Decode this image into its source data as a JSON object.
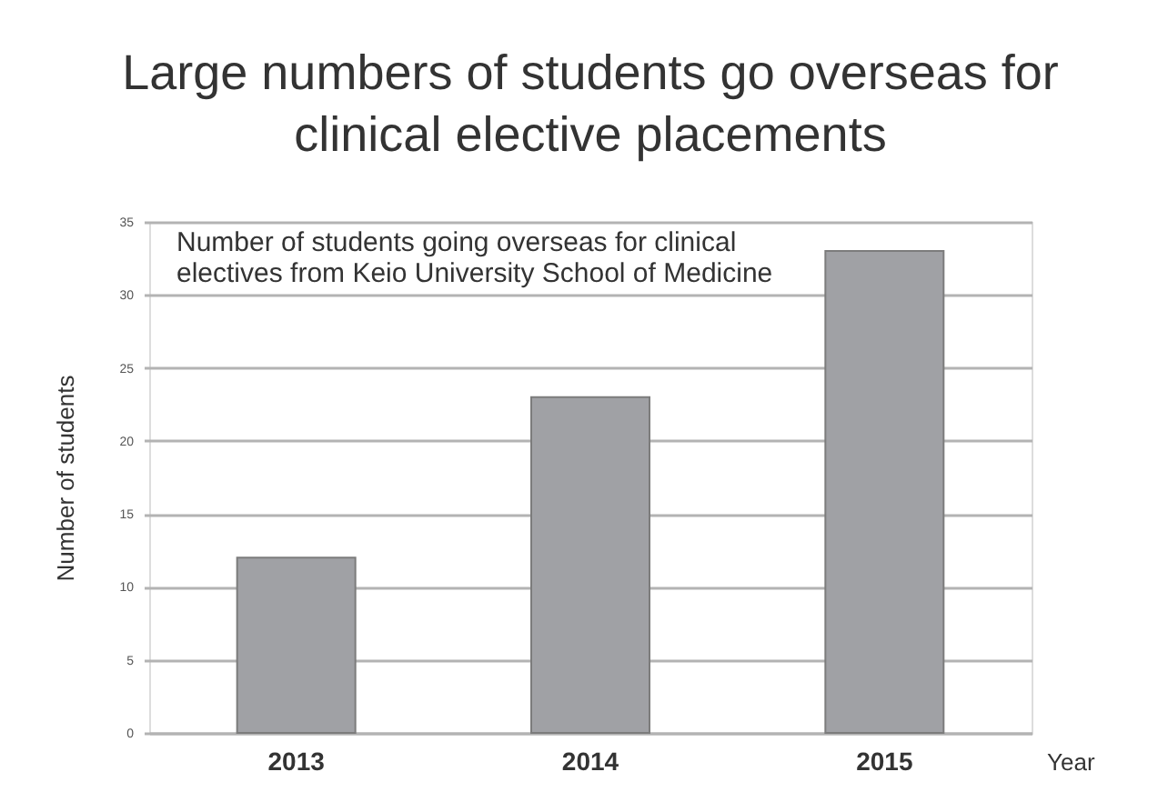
{
  "chart_data": {
    "type": "bar",
    "title": "Large numbers of students go overseas for\nclinical elective placements",
    "annotations": [
      "Number of students going overseas for clinical\nelectives from Keio University School of Medicine"
    ],
    "xlabel": "Year",
    "ylabel": "Number of students",
    "categories": [
      "2013",
      "2014",
      "2015"
    ],
    "values": [
      12,
      23,
      33
    ],
    "color": "#a0a1a5",
    "ylim": [
      0,
      35
    ],
    "yticks": [
      0,
      5,
      10,
      15,
      20,
      25,
      30,
      35
    ],
    "grid": "y"
  }
}
